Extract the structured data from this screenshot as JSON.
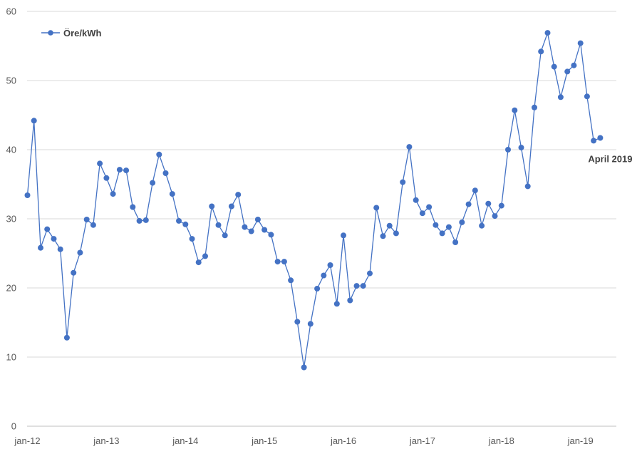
{
  "chart_data": {
    "type": "line",
    "title": "",
    "xlabel": "",
    "ylabel": "",
    "ylim": [
      0,
      60
    ],
    "yticks": [
      0,
      10,
      20,
      30,
      40,
      50,
      60
    ],
    "grid": true,
    "legend_position": "top-left",
    "series_color": "#4472C4",
    "xtick_labels": [
      "jan-12",
      "jan-13",
      "jan-14",
      "jan-15",
      "jan-16",
      "jan-17",
      "jan-18",
      "jan-19"
    ],
    "series": [
      {
        "name": "Öre/kWh",
        "x_start": "2012-01",
        "x_end": "2019-04",
        "values": [
          33.4,
          44.2,
          25.8,
          28.5,
          27.1,
          25.6,
          12.8,
          22.2,
          25.1,
          29.9,
          29.1,
          38.0,
          35.9,
          33.6,
          37.1,
          37.0,
          31.7,
          29.7,
          29.8,
          35.2,
          39.3,
          36.6,
          33.6,
          29.7,
          29.2,
          27.1,
          23.7,
          24.6,
          31.8,
          29.1,
          27.6,
          31.8,
          33.5,
          28.8,
          28.2,
          29.9,
          28.4,
          27.7,
          23.8,
          23.8,
          21.1,
          15.1,
          8.5,
          14.8,
          19.9,
          21.8,
          23.3,
          17.7,
          27.6,
          18.2,
          20.3,
          20.3,
          22.1,
          31.6,
          27.5,
          29.0,
          27.9,
          35.3,
          40.4,
          32.7,
          30.8,
          31.7,
          29.1,
          27.9,
          28.8,
          26.6,
          29.5,
          32.1,
          34.1,
          29.0,
          32.2,
          30.4,
          31.9,
          40.0,
          45.7,
          40.3,
          34.7,
          46.1,
          54.2,
          56.9,
          52.0,
          47.6,
          51.3,
          52.2,
          55.4,
          47.7,
          41.3,
          41.7
        ]
      }
    ],
    "annotations": [
      {
        "text": "April 2019",
        "x": "2019-04",
        "y": 41.7
      }
    ]
  }
}
